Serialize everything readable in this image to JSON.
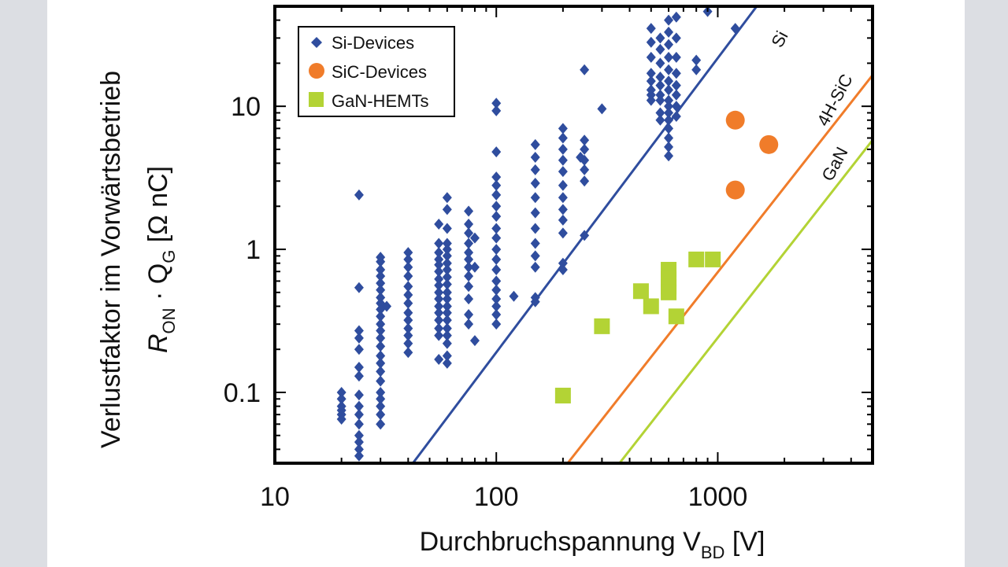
{
  "chart_data": {
    "type": "scatter",
    "log_x": true,
    "log_y": true,
    "xlim": [
      10,
      5000
    ],
    "ylim": [
      0.032,
      50
    ],
    "x_ticks": [
      10,
      100,
      1000
    ],
    "x_tick_labels": [
      "10",
      "100",
      "1000"
    ],
    "y_ticks": [
      0.1,
      1,
      10
    ],
    "y_tick_labels": [
      "0.1",
      "1",
      "10"
    ],
    "xlabel": {
      "main": "Durchbruchspannung V",
      "sub": "BD",
      "unit": " [V]"
    },
    "ylabel": {
      "line1": "Verlustfaktor im Vorwärtsbetrieb",
      "main": "R",
      "sub1": "ON",
      "mid": " · Q",
      "sub2": "G",
      "unit": " [Ω nC]"
    },
    "legend": {
      "position": "top-left",
      "entries": [
        "Si-Devices",
        "SiC-Devices",
        "GaN-HEMTs"
      ]
    },
    "series": [
      {
        "name": "Si-Devices",
        "marker": "diamond",
        "color": "#2f4d9e",
        "points": [
          [
            20,
            0.1
          ],
          [
            20,
            0.09
          ],
          [
            20,
            0.08
          ],
          [
            20,
            0.075
          ],
          [
            20,
            0.07
          ],
          [
            20,
            0.065
          ],
          [
            24,
            2.4
          ],
          [
            24,
            0.54
          ],
          [
            24,
            0.27
          ],
          [
            24,
            0.24
          ],
          [
            24,
            0.2
          ],
          [
            24,
            0.15
          ],
          [
            24,
            0.13
          ],
          [
            24,
            0.096
          ],
          [
            24,
            0.08
          ],
          [
            24,
            0.07
          ],
          [
            24,
            0.06
          ],
          [
            24,
            0.05
          ],
          [
            24,
            0.045
          ],
          [
            24,
            0.04
          ],
          [
            24,
            0.036
          ],
          [
            30,
            0.88
          ],
          [
            30,
            0.82
          ],
          [
            30,
            0.72
          ],
          [
            30,
            0.65
          ],
          [
            30,
            0.58
          ],
          [
            30,
            0.52
          ],
          [
            30,
            0.46
          ],
          [
            30,
            0.42
          ],
          [
            30,
            0.38
          ],
          [
            30,
            0.34
          ],
          [
            30,
            0.3
          ],
          [
            30,
            0.27
          ],
          [
            30,
            0.24
          ],
          [
            30,
            0.21
          ],
          [
            30,
            0.18
          ],
          [
            30,
            0.16
          ],
          [
            30,
            0.14
          ],
          [
            30,
            0.12
          ],
          [
            30,
            0.1
          ],
          [
            30,
            0.09
          ],
          [
            30,
            0.08
          ],
          [
            30,
            0.07
          ],
          [
            30,
            0.06
          ],
          [
            32,
            0.4
          ],
          [
            40,
            0.95
          ],
          [
            40,
            0.85
          ],
          [
            40,
            0.75
          ],
          [
            40,
            0.65
          ],
          [
            40,
            0.55
          ],
          [
            40,
            0.48
          ],
          [
            40,
            0.42
          ],
          [
            40,
            0.36
          ],
          [
            40,
            0.32
          ],
          [
            40,
            0.28
          ],
          [
            40,
            0.25
          ],
          [
            40,
            0.22
          ],
          [
            40,
            0.19
          ],
          [
            55,
            1.5
          ],
          [
            55,
            1.1
          ],
          [
            55,
            0.95
          ],
          [
            55,
            0.85
          ],
          [
            55,
            0.78
          ],
          [
            55,
            0.7
          ],
          [
            55,
            0.62
          ],
          [
            55,
            0.56
          ],
          [
            55,
            0.5
          ],
          [
            55,
            0.45
          ],
          [
            55,
            0.4
          ],
          [
            55,
            0.36
          ],
          [
            55,
            0.32
          ],
          [
            55,
            0.28
          ],
          [
            55,
            0.25
          ],
          [
            55,
            0.17
          ],
          [
            60,
            2.3
          ],
          [
            60,
            1.9
          ],
          [
            60,
            1.4
          ],
          [
            60,
            1.1
          ],
          [
            60,
            1.0
          ],
          [
            60,
            0.9
          ],
          [
            60,
            0.8
          ],
          [
            60,
            0.72
          ],
          [
            60,
            0.64
          ],
          [
            60,
            0.57
          ],
          [
            60,
            0.5
          ],
          [
            60,
            0.45
          ],
          [
            60,
            0.4
          ],
          [
            60,
            0.36
          ],
          [
            60,
            0.32
          ],
          [
            60,
            0.28
          ],
          [
            60,
            0.25
          ],
          [
            60,
            0.22
          ],
          [
            60,
            0.18
          ],
          [
            60,
            0.16
          ],
          [
            75,
            1.85
          ],
          [
            75,
            1.5
          ],
          [
            75,
            1.3
          ],
          [
            75,
            1.1
          ],
          [
            75,
            0.95
          ],
          [
            75,
            0.85
          ],
          [
            75,
            0.75
          ],
          [
            75,
            0.65
          ],
          [
            75,
            0.55
          ],
          [
            75,
            0.45
          ],
          [
            75,
            0.35
          ],
          [
            75,
            0.3
          ],
          [
            80,
            1.2
          ],
          [
            80,
            0.75
          ],
          [
            80,
            0.23
          ],
          [
            100,
            10.5
          ],
          [
            100,
            9.3
          ],
          [
            100,
            4.8
          ],
          [
            100,
            3.2
          ],
          [
            100,
            2.8
          ],
          [
            100,
            2.4
          ],
          [
            100,
            2.0
          ],
          [
            100,
            1.7
          ],
          [
            100,
            1.4
          ],
          [
            100,
            1.2
          ],
          [
            100,
            1.0
          ],
          [
            100,
            0.85
          ],
          [
            100,
            0.72
          ],
          [
            100,
            0.6
          ],
          [
            100,
            0.52
          ],
          [
            100,
            0.45
          ],
          [
            100,
            0.4
          ],
          [
            100,
            0.35
          ],
          [
            100,
            0.3
          ],
          [
            120,
            0.47
          ],
          [
            150,
            5.4
          ],
          [
            150,
            4.4
          ],
          [
            150,
            3.6
          ],
          [
            150,
            2.9
          ],
          [
            150,
            2.3
          ],
          [
            150,
            1.8
          ],
          [
            150,
            1.4
          ],
          [
            150,
            1.1
          ],
          [
            150,
            0.9
          ],
          [
            150,
            0.75
          ],
          [
            150,
            0.46
          ],
          [
            150,
            0.43
          ],
          [
            200,
            7.0
          ],
          [
            200,
            6.0
          ],
          [
            200,
            5.0
          ],
          [
            200,
            4.2
          ],
          [
            200,
            3.5
          ],
          [
            200,
            2.8
          ],
          [
            200,
            2.3
          ],
          [
            200,
            1.9
          ],
          [
            200,
            1.6
          ],
          [
            200,
            1.3
          ],
          [
            200,
            0.8
          ],
          [
            200,
            0.72
          ],
          [
            250,
            18
          ],
          [
            250,
            5.8
          ],
          [
            250,
            5.0
          ],
          [
            250,
            4.2
          ],
          [
            250,
            3.6
          ],
          [
            250,
            3.0
          ],
          [
            250,
            1.25
          ],
          [
            240,
            4.4
          ],
          [
            300,
            9.6
          ],
          [
            500,
            35
          ],
          [
            500,
            28
          ],
          [
            500,
            22
          ],
          [
            500,
            17
          ],
          [
            500,
            15
          ],
          [
            500,
            13
          ],
          [
            500,
            12
          ],
          [
            500,
            11
          ],
          [
            550,
            30
          ],
          [
            550,
            25
          ],
          [
            550,
            20
          ],
          [
            550,
            16
          ],
          [
            550,
            14
          ],
          [
            550,
            12
          ],
          [
            550,
            11
          ],
          [
            550,
            9
          ],
          [
            550,
            8
          ],
          [
            600,
            40
          ],
          [
            600,
            33
          ],
          [
            600,
            27
          ],
          [
            600,
            22
          ],
          [
            600,
            18
          ],
          [
            600,
            15
          ],
          [
            600,
            13
          ],
          [
            600,
            11
          ],
          [
            600,
            10
          ],
          [
            600,
            9
          ],
          [
            600,
            8
          ],
          [
            600,
            7
          ],
          [
            600,
            6
          ],
          [
            600,
            5.2
          ],
          [
            600,
            4.5
          ],
          [
            650,
            42
          ],
          [
            650,
            30
          ],
          [
            650,
            22
          ],
          [
            650,
            17
          ],
          [
            650,
            14
          ],
          [
            650,
            12
          ],
          [
            650,
            10
          ],
          [
            650,
            8.5
          ],
          [
            800,
            21
          ],
          [
            800,
            18
          ],
          [
            900,
            46
          ],
          [
            1200,
            35
          ]
        ]
      },
      {
        "name": "SiC-Devices",
        "marker": "circle",
        "color": "#f07c2a",
        "points": [
          [
            1200,
            8.0
          ],
          [
            1200,
            2.6
          ],
          [
            1700,
            5.4
          ]
        ]
      },
      {
        "name": "GaN-HEMTs",
        "marker": "square",
        "color": "#b3d335",
        "points": [
          [
            200,
            0.095
          ],
          [
            300,
            0.29
          ],
          [
            450,
            0.51
          ],
          [
            500,
            0.4
          ],
          [
            600,
            0.72
          ],
          [
            600,
            0.62
          ],
          [
            600,
            0.55
          ],
          [
            600,
            0.5
          ],
          [
            650,
            0.34
          ],
          [
            800,
            0.85
          ],
          [
            950,
            0.85
          ]
        ]
      }
    ],
    "limit_lines": [
      {
        "label": "Si",
        "color": "#2f4d9e",
        "from": [
          42,
          0.032
        ],
        "to": [
          1500,
          50
        ]
      },
      {
        "label": "4H-SiC",
        "color": "#f07c2a",
        "from": [
          210,
          0.032
        ],
        "to": [
          5000,
          16.5
        ]
      },
      {
        "label": "GaN",
        "color": "#b3d335",
        "from": [
          360,
          0.032
        ],
        "to": [
          5000,
          5.8
        ]
      }
    ]
  }
}
